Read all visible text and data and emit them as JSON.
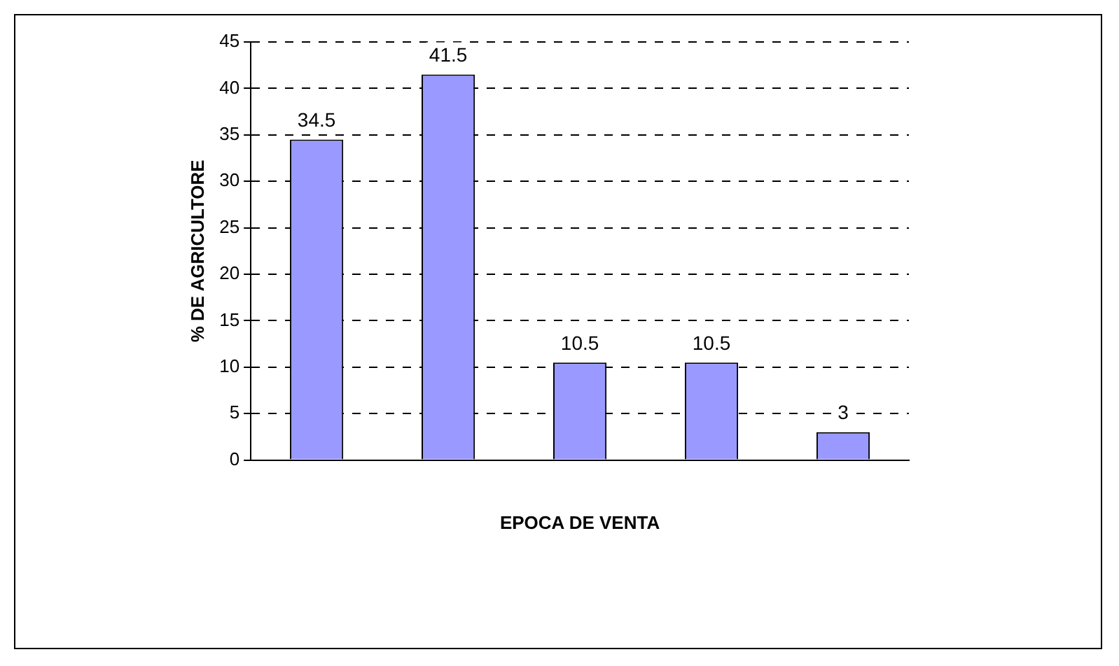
{
  "chart_data": {
    "type": "bar",
    "xlabel": "EPOCA DE VENTA",
    "ylabel": "% DE AGRICULTORE",
    "categories": [
      null,
      null,
      null,
      null,
      null
    ],
    "values": [
      34.5,
      41.5,
      10.5,
      10.5,
      3
    ],
    "color": "#9999ff",
    "ylim": [
      0,
      45
    ],
    "yticks": [
      0,
      5,
      10,
      15,
      20,
      25,
      30,
      35,
      40,
      45
    ],
    "grid": "y",
    "data_labels": true
  }
}
